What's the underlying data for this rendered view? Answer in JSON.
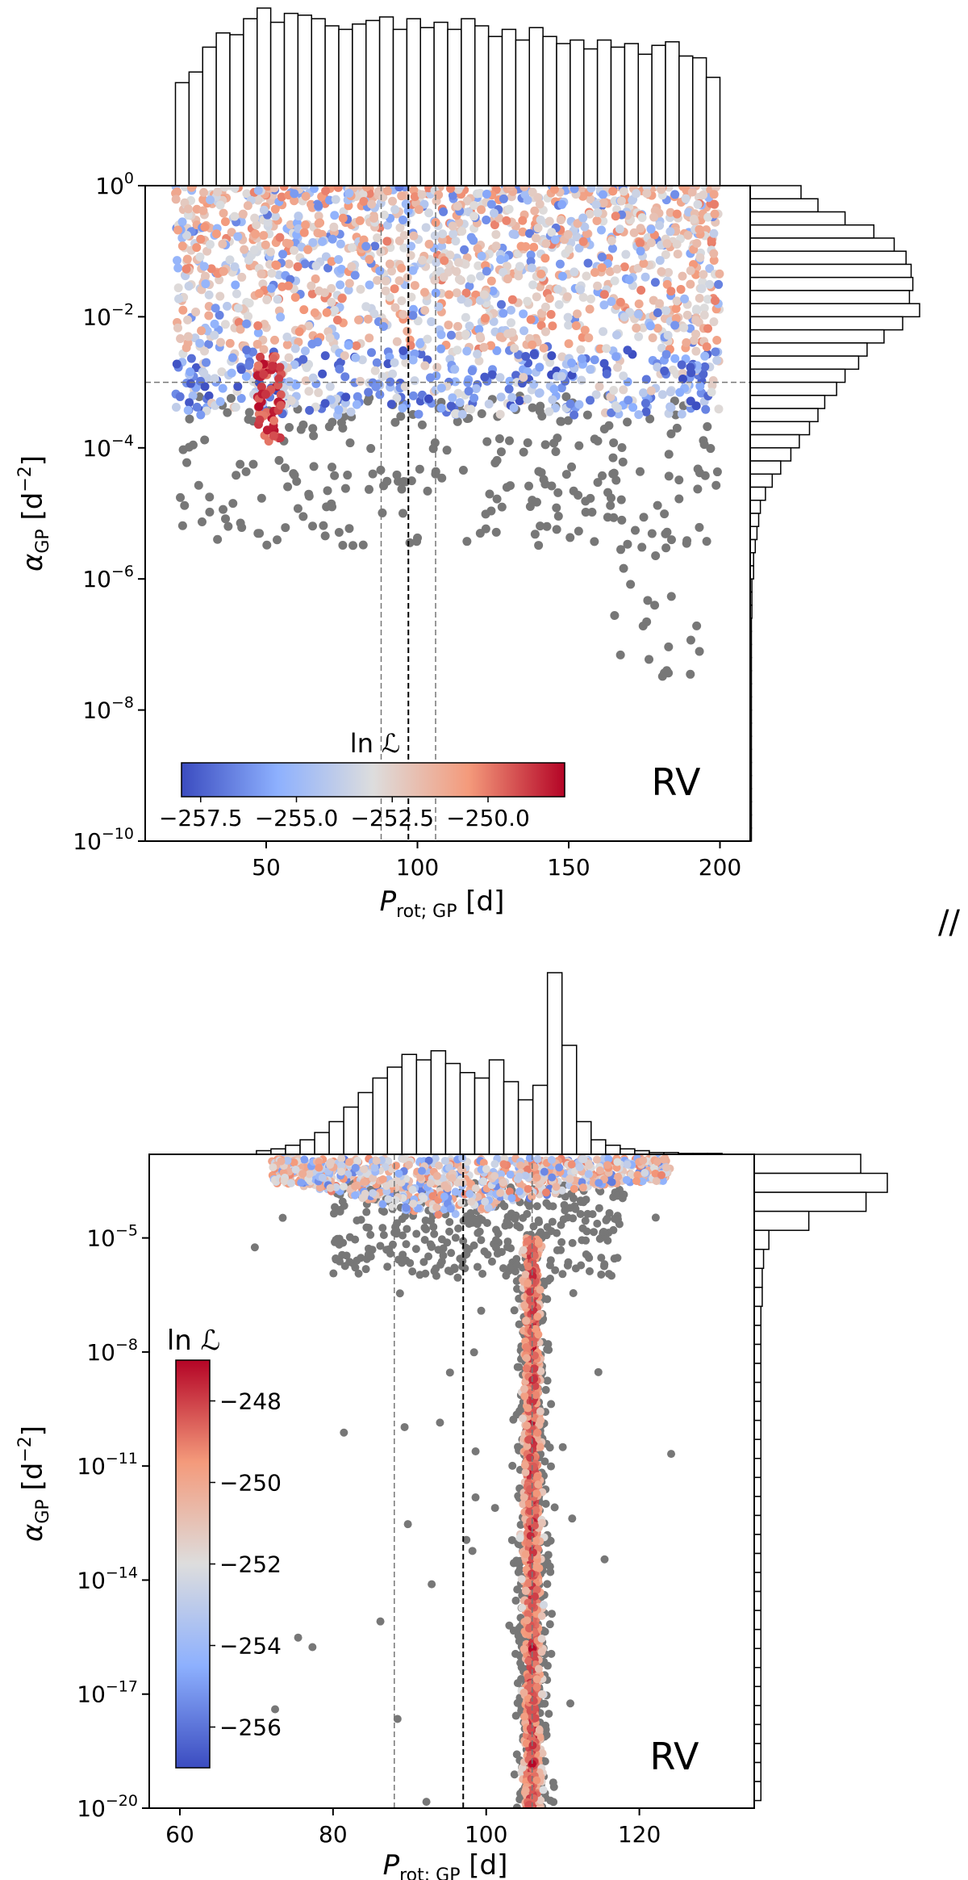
{
  "separator": "//",
  "chart_data": [
    {
      "type": "scatter",
      "label": "RV",
      "xlabel": "P_rot; GP [d]",
      "ylabel": "α_GP [d⁻²]",
      "xlim": [
        10,
        210
      ],
      "ylim_exp": [
        -10,
        0
      ],
      "log_y": true,
      "xticks": [
        50,
        100,
        150,
        200
      ],
      "yticks_exp": [
        -10,
        -8,
        -6,
        -4,
        -2,
        0
      ],
      "vlines": [
        {
          "x": 97,
          "style": "dashed-dark"
        },
        {
          "x": 88,
          "style": "dashed-gray"
        },
        {
          "x": 106,
          "style": "dashed-gray"
        }
      ],
      "hlines": [
        {
          "y_exp": -3,
          "style": "dashed-gray"
        }
      ],
      "colorbar": {
        "label": "ln ℒ",
        "orientation": "horizontal",
        "ticks": [
          -257.5,
          -255.0,
          -252.5,
          -250.0
        ],
        "tick_labels": [
          "−257.5",
          "−255.0",
          "−252.5",
          "−250.0"
        ],
        "range": [
          -258,
          -248
        ],
        "colormap": "coolwarm"
      },
      "histogram_x": {
        "edges_start": 20,
        "bin_width": 4.5,
        "counts": [
          0.58,
          0.64,
          0.78,
          0.86,
          0.85,
          0.94,
          1.0,
          0.92,
          0.97,
          0.96,
          0.94,
          0.9,
          0.88,
          0.91,
          0.93,
          0.95,
          0.88,
          0.94,
          0.89,
          0.92,
          0.88,
          0.94,
          0.9,
          0.84,
          0.88,
          0.82,
          0.89,
          0.84,
          0.8,
          0.82,
          0.77,
          0.82,
          0.78,
          0.8,
          0.74,
          0.79,
          0.81,
          0.73,
          0.72,
          0.61
        ]
      },
      "histogram_y": {
        "edges_start_exp": 0,
        "bin_width_exp": -0.2,
        "counts": [
          0.3,
          0.4,
          0.56,
          0.73,
          0.85,
          0.92,
          0.95,
          0.96,
          0.94,
          1.0,
          0.9,
          0.79,
          0.69,
          0.64,
          0.56,
          0.51,
          0.44,
          0.4,
          0.35,
          0.29,
          0.24,
          0.18,
          0.13,
          0.09,
          0.06,
          0.05,
          0.04,
          0.03,
          0.02,
          0.02,
          0.01,
          0.01,
          0.01,
          0.005,
          0.005,
          0.005,
          0.004,
          0.004,
          0.003,
          0.003,
          0.003,
          0.003,
          0.002,
          0.002,
          0.002,
          0.002,
          0.002,
          0.002,
          0.002,
          0.002
        ]
      },
      "series": [
        {
          "name": "ln ℒ colored samples",
          "density": [
            {
              "x_range": [
                20,
                200
              ],
              "y_exp_range": [
                -3.5,
                0
              ],
              "n": 1800
            },
            {
              "x_range": [
                47,
                55
              ],
              "y_exp_range": [
                -3.9,
                -2.6
              ],
              "n": 60
            }
          ]
        },
        {
          "name": "outside colorbar range",
          "color": "#777777",
          "density": [
            {
              "x_range": [
                20,
                200
              ],
              "y_exp_range": [
                -5.5,
                -3.2
              ],
              "n": 240
            },
            {
              "x_range": [
                165,
                195
              ],
              "y_exp_range": [
                -7.5,
                -5
              ],
              "n": 30
            }
          ]
        }
      ]
    },
    {
      "type": "scatter",
      "label": "RV",
      "xlabel": "P_rot; GP [d]",
      "ylabel": "α_GP [d⁻²]",
      "xlim": [
        56,
        135
      ],
      "ylim_exp": [
        -20,
        -2.8
      ],
      "log_y": true,
      "xticks": [
        60,
        80,
        100,
        120
      ],
      "yticks_exp": [
        -20,
        -17,
        -14,
        -11,
        -8,
        -5
      ],
      "vlines": [
        {
          "x": 97,
          "style": "dashed-dark"
        },
        {
          "x": 88,
          "style": "dashed-gray"
        },
        {
          "x": 106,
          "style": "dashed-gray"
        }
      ],
      "colorbar": {
        "label": "ln ℒ",
        "orientation": "vertical",
        "ticks": [
          -248,
          -250,
          -252,
          -254,
          -256
        ],
        "tick_labels": [
          "−248",
          "−250",
          "−252",
          "−254",
          "−256"
        ],
        "range": [
          -257,
          -247
        ],
        "colormap": "coolwarm"
      },
      "histogram_x": {
        "edges_start": 70,
        "bin_width": 1.9,
        "counts": [
          0.02,
          0.03,
          0.05,
          0.08,
          0.12,
          0.18,
          0.26,
          0.34,
          0.42,
          0.48,
          0.55,
          0.52,
          0.57,
          0.5,
          0.45,
          0.42,
          0.52,
          0.4,
          0.3,
          0.38,
          1.0,
          0.6,
          0.18,
          0.08,
          0.05,
          0.03,
          0.02,
          0.01,
          0.01,
          0.005,
          0.005,
          0.005
        ]
      },
      "histogram_y": {
        "edges_start_exp": -2.8,
        "bin_width_exp": -0.5,
        "counts": [
          0.8,
          1.0,
          0.84,
          0.41,
          0.11,
          0.07,
          0.06,
          0.06,
          0.05,
          0.05,
          0.05,
          0.05,
          0.05,
          0.05,
          0.05,
          0.05,
          0.05,
          0.05,
          0.05,
          0.05,
          0.05,
          0.05,
          0.05,
          0.05,
          0.05,
          0.05,
          0.05,
          0.05,
          0.05,
          0.05,
          0.05,
          0.05,
          0.05,
          0.05
        ]
      },
      "series": [
        {
          "name": "ln ℒ colored samples",
          "density": [
            {
              "x_range": [
                72,
                124
              ],
              "y_exp_range": [
                -4.5,
                -2.9
              ],
              "n": 900
            },
            {
              "x_range": [
                103.5,
                108.5
              ],
              "y_exp_range": [
                -20,
                -5
              ],
              "n": 1100
            }
          ]
        },
        {
          "name": "outside colorbar range",
          "color": "#777777",
          "density": [
            {
              "x_range": [
                80,
                118
              ],
              "y_exp_range": [
                -6,
                -3.5
              ],
              "n": 350
            },
            {
              "x_range": [
                100,
                112
              ],
              "y_exp_range": [
                -20,
                -6
              ],
              "n": 600
            },
            {
              "x_range": [
                60,
                125
              ],
              "y_exp_range": [
                -20,
                -3
              ],
              "n": 40
            }
          ]
        }
      ]
    }
  ]
}
